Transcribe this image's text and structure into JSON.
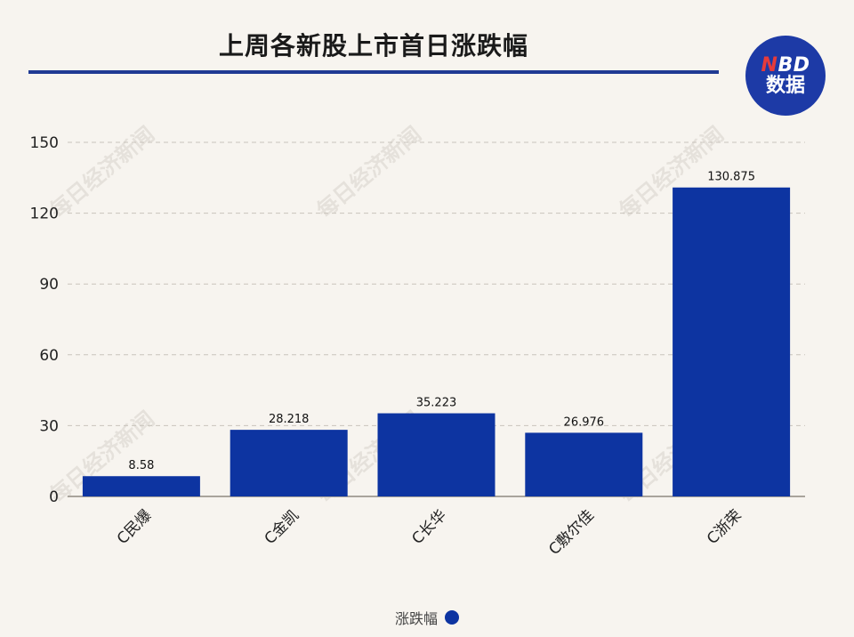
{
  "header": {
    "title": "上周各新股上市首日涨跌幅",
    "logo_line1_n": "N",
    "logo_line1_rest": "BD",
    "logo_line2": "数据"
  },
  "watermark_text": "每日经济新闻",
  "colors": {
    "bar": "#0d34a1",
    "accent": "#1f3a93",
    "logo": "#1d3aa6"
  },
  "chart_data": {
    "type": "bar",
    "title": "上周各新股上市首日涨跌幅",
    "categories": [
      "C民爆",
      "C金凯",
      "C长华",
      "C敷尔佳",
      "C浙荣"
    ],
    "series": [
      {
        "name": "涨跌幅",
        "values": [
          8.58,
          28.218,
          35.223,
          26.976,
          130.875
        ]
      }
    ],
    "value_labels": [
      "8.58",
      "28.218",
      "35.223",
      "26.976",
      "130.875"
    ],
    "yticks": [
      0,
      30,
      60,
      90,
      120,
      150
    ],
    "ylim": [
      0,
      150
    ],
    "grid": true,
    "legend": "bottom-center",
    "xlabel": "",
    "ylabel": ""
  }
}
